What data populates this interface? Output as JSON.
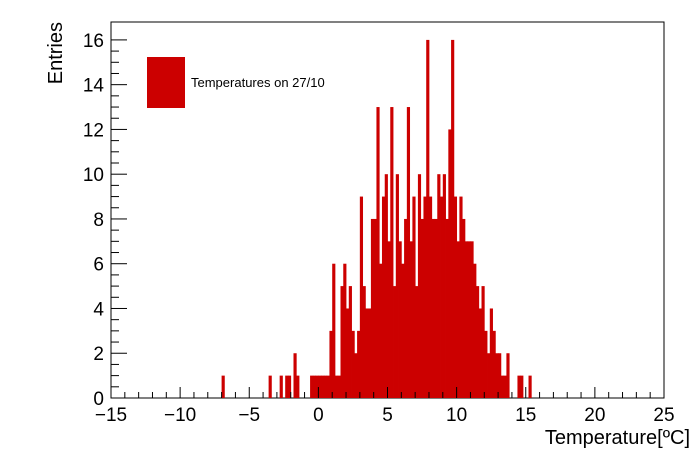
{
  "chart_data": {
    "type": "bar",
    "subtype": "histogram",
    "title": "",
    "xlabel": "Temperature[ºC]",
    "ylabel": "Entries",
    "xlim": [
      -15,
      25
    ],
    "ylim": [
      0,
      16.8
    ],
    "bin_width": 0.2,
    "x_ticks": [
      -15,
      -10,
      -5,
      0,
      5,
      10,
      15,
      20,
      25
    ],
    "y_ticks": [
      0,
      2,
      4,
      6,
      8,
      10,
      12,
      14,
      16
    ],
    "x_tick_labels": [
      "−15",
      "−10",
      "−5",
      "0",
      "5",
      "10",
      "15",
      "20",
      "25"
    ],
    "y_tick_labels": [
      "0",
      "2",
      "4",
      "6",
      "8",
      "10",
      "12",
      "14",
      "16"
    ],
    "legend": {
      "position": "top-left",
      "label": "Temperatures on 27/10"
    },
    "colors": {
      "bar": "#cc0000",
      "axis": "#000000",
      "background": "#ffffff"
    },
    "series": [
      {
        "name": "Temperatures on 27/10",
        "bins": [
          [
            -7.0,
            1
          ],
          [
            -3.6,
            1
          ],
          [
            -2.8,
            1
          ],
          [
            -2.4,
            1
          ],
          [
            -2.2,
            1
          ],
          [
            -1.8,
            2
          ],
          [
            -1.6,
            1
          ],
          [
            -0.6,
            1
          ],
          [
            -0.4,
            1
          ],
          [
            -0.2,
            1
          ],
          [
            0.0,
            1
          ],
          [
            0.2,
            1
          ],
          [
            0.4,
            1
          ],
          [
            0.6,
            1
          ],
          [
            0.8,
            3
          ],
          [
            1.0,
            6
          ],
          [
            1.2,
            1
          ],
          [
            1.4,
            1
          ],
          [
            1.6,
            5
          ],
          [
            1.8,
            6
          ],
          [
            2.0,
            4
          ],
          [
            2.2,
            5
          ],
          [
            2.4,
            3
          ],
          [
            2.6,
            2
          ],
          [
            2.8,
            3
          ],
          [
            3.0,
            9
          ],
          [
            3.2,
            5
          ],
          [
            3.4,
            4
          ],
          [
            3.6,
            4
          ],
          [
            3.8,
            8
          ],
          [
            4.0,
            8
          ],
          [
            4.2,
            13
          ],
          [
            4.4,
            6
          ],
          [
            4.6,
            9
          ],
          [
            4.8,
            10
          ],
          [
            5.0,
            7
          ],
          [
            5.2,
            13
          ],
          [
            5.4,
            5
          ],
          [
            5.6,
            10
          ],
          [
            5.8,
            7
          ],
          [
            6.0,
            6
          ],
          [
            6.2,
            8
          ],
          [
            6.4,
            13
          ],
          [
            6.6,
            7
          ],
          [
            6.8,
            9
          ],
          [
            7.0,
            5
          ],
          [
            7.2,
            10
          ],
          [
            7.4,
            8
          ],
          [
            7.6,
            9
          ],
          [
            7.8,
            16
          ],
          [
            8.0,
            9
          ],
          [
            8.2,
            8
          ],
          [
            8.4,
            8
          ],
          [
            8.6,
            10
          ],
          [
            8.8,
            9
          ],
          [
            9.0,
            10
          ],
          [
            9.2,
            8
          ],
          [
            9.4,
            12
          ],
          [
            9.6,
            16
          ],
          [
            9.8,
            9
          ],
          [
            10.0,
            7
          ],
          [
            10.2,
            9
          ],
          [
            10.4,
            8
          ],
          [
            10.6,
            7
          ],
          [
            10.8,
            7
          ],
          [
            11.0,
            7
          ],
          [
            11.2,
            6
          ],
          [
            11.4,
            5
          ],
          [
            11.6,
            4
          ],
          [
            11.8,
            5
          ],
          [
            12.0,
            3
          ],
          [
            12.2,
            2
          ],
          [
            12.4,
            4
          ],
          [
            12.6,
            3
          ],
          [
            12.8,
            2
          ],
          [
            13.0,
            2
          ],
          [
            13.2,
            1
          ],
          [
            13.4,
            1
          ],
          [
            13.6,
            2
          ],
          [
            14.4,
            1
          ],
          [
            14.6,
            1
          ],
          [
            15.2,
            1
          ]
        ]
      }
    ]
  }
}
